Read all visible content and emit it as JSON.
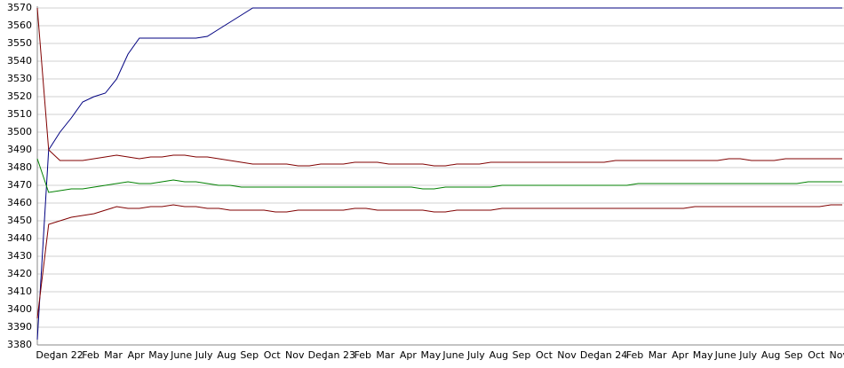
{
  "chart_data": {
    "type": "line",
    "categories": [
      "Dec",
      null,
      "Jan 22",
      null,
      "Feb",
      null,
      "Mar",
      null,
      "Apr",
      null,
      "May",
      null,
      "June",
      null,
      "July",
      null,
      "Aug",
      null,
      "Sep",
      null,
      "Oct",
      null,
      "Nov",
      null,
      "Dec",
      null,
      "Jan 23",
      null,
      "Feb",
      null,
      "Mar",
      null,
      "Apr",
      null,
      "May",
      null,
      "June",
      null,
      "July",
      null,
      "Aug",
      null,
      "Sep",
      null,
      "Oct",
      null,
      "Nov",
      null,
      "Dec",
      null,
      "Jan 24",
      null,
      "Feb",
      null,
      "Mar",
      null,
      "Apr",
      null,
      "May",
      null,
      "June",
      null,
      "July",
      null,
      "Aug",
      null,
      "Sep",
      null,
      "Oct",
      null,
      "Nov",
      null
    ],
    "series": [
      {
        "color": "#000080",
        "values": [
          3383,
          3490,
          3500,
          3508,
          3517,
          3520,
          3522,
          3530,
          3544,
          3553,
          3553,
          3553,
          3553,
          3553,
          3553,
          3554,
          3558,
          3562,
          3566,
          3570,
          3570,
          3570,
          3570,
          3570,
          3570,
          3570,
          3570,
          3570,
          3570,
          3570,
          3570,
          3570,
          3570,
          3570,
          3570,
          3570,
          3570,
          3570,
          3570,
          3570,
          3570,
          3570,
          3570,
          3570,
          3570,
          3570,
          3570,
          3570,
          3570,
          3570,
          3570,
          3570,
          3570,
          3570,
          3570,
          3570,
          3570,
          3570,
          3570,
          3570,
          3570,
          3570,
          3570,
          3570,
          3570,
          3570,
          3570,
          3570,
          3570,
          3570,
          3570,
          3570
        ]
      },
      {
        "color": "#800000",
        "values": [
          3570,
          3490,
          3484,
          3484,
          3484,
          3485,
          3486,
          3487,
          3486,
          3485,
          3486,
          3486,
          3487,
          3487,
          3486,
          3486,
          3485,
          3484,
          3483,
          3482,
          3482,
          3482,
          3482,
          3481,
          3481,
          3482,
          3482,
          3482,
          3483,
          3483,
          3483,
          3482,
          3482,
          3482,
          3482,
          3481,
          3481,
          3482,
          3482,
          3482,
          3483,
          3483,
          3483,
          3483,
          3483,
          3483,
          3483,
          3483,
          3483,
          3483,
          3483,
          3484,
          3484,
          3484,
          3484,
          3484,
          3484,
          3484,
          3484,
          3484,
          3484,
          3485,
          3485,
          3484,
          3484,
          3484,
          3485,
          3485,
          3485,
          3485,
          3485,
          3485
        ]
      },
      {
        "color": "#008000",
        "values": [
          3485,
          3466,
          3467,
          3468,
          3468,
          3469,
          3470,
          3471,
          3472,
          3471,
          3471,
          3472,
          3473,
          3472,
          3472,
          3471,
          3470,
          3470,
          3469,
          3469,
          3469,
          3469,
          3469,
          3469,
          3469,
          3469,
          3469,
          3469,
          3469,
          3469,
          3469,
          3469,
          3469,
          3469,
          3468,
          3468,
          3469,
          3469,
          3469,
          3469,
          3469,
          3470,
          3470,
          3470,
          3470,
          3470,
          3470,
          3470,
          3470,
          3470,
          3470,
          3470,
          3470,
          3471,
          3471,
          3471,
          3471,
          3471,
          3471,
          3471,
          3471,
          3471,
          3471,
          3471,
          3471,
          3471,
          3471,
          3471,
          3472,
          3472,
          3472,
          3472
        ]
      },
      {
        "color": "#800000",
        "values": [
          3395,
          3448,
          3450,
          3452,
          3453,
          3454,
          3456,
          3458,
          3457,
          3457,
          3458,
          3458,
          3459,
          3458,
          3458,
          3457,
          3457,
          3456,
          3456,
          3456,
          3456,
          3455,
          3455,
          3456,
          3456,
          3456,
          3456,
          3456,
          3457,
          3457,
          3456,
          3456,
          3456,
          3456,
          3456,
          3455,
          3455,
          3456,
          3456,
          3456,
          3456,
          3457,
          3457,
          3457,
          3457,
          3457,
          3457,
          3457,
          3457,
          3457,
          3457,
          3457,
          3457,
          3457,
          3457,
          3457,
          3457,
          3457,
          3458,
          3458,
          3458,
          3458,
          3458,
          3458,
          3458,
          3458,
          3458,
          3458,
          3458,
          3458,
          3459,
          3459
        ]
      }
    ],
    "ylim": [
      3380,
      3570
    ],
    "yticks": [
      3380,
      3390,
      3400,
      3410,
      3420,
      3430,
      3440,
      3450,
      3460,
      3470,
      3480,
      3490,
      3500,
      3510,
      3520,
      3530,
      3540,
      3550,
      3560,
      3570
    ],
    "grid": true
  }
}
